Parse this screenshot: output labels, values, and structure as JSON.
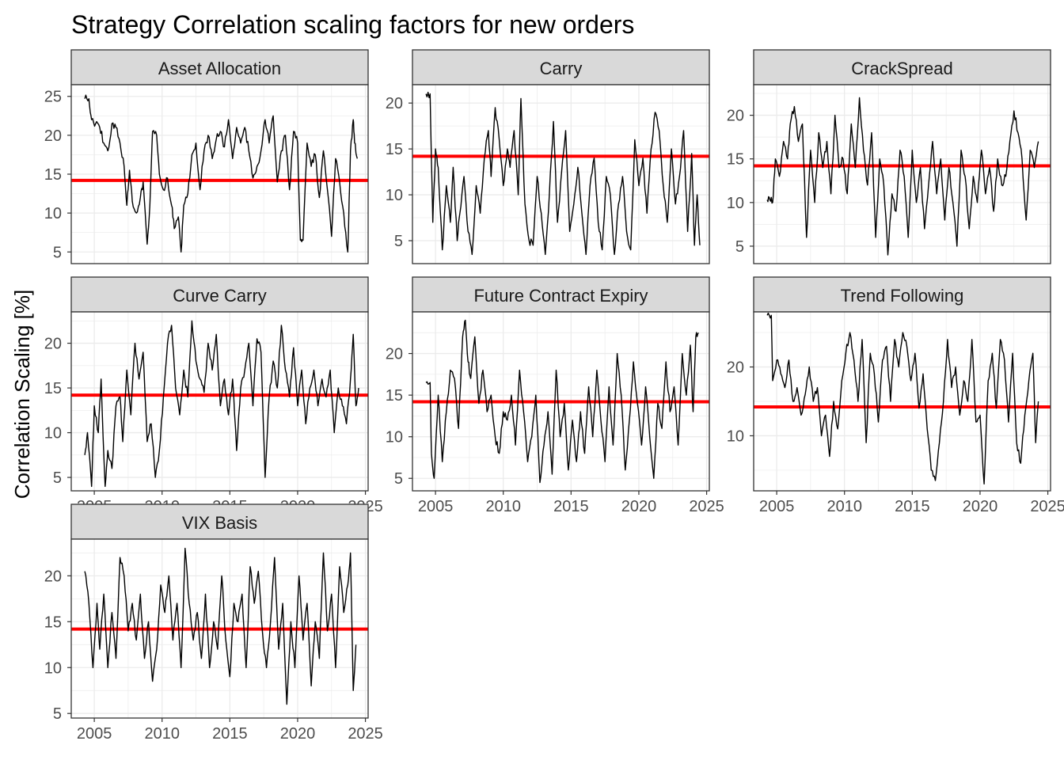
{
  "chart_data": {
    "type": "line",
    "title": "Strategy Correlation scaling factors for new orders",
    "xlabel": "",
    "ylabel": "Correlation Scaling [%]",
    "x_range": [
      2003.3,
      2025.2
    ],
    "x_ticks": [
      "2005",
      "2010",
      "2015",
      "2020",
      "2025"
    ],
    "grid": true,
    "legend": "none",
    "series_color": "#000000",
    "reference_color": "#ff0000",
    "panels": [
      {
        "name": "Asset Allocation",
        "ylim": [
          3.5,
          26.5
        ],
        "y_ticks": [
          "5",
          "10",
          "15",
          "20",
          "25"
        ],
        "reference": 14.2,
        "x": [
          2004.3,
          2004.6,
          2004.8,
          2005.1,
          2005.4,
          2005.7,
          2006.0,
          2006.3,
          2006.6,
          2006.9,
          2007.2,
          2007.4,
          2007.6,
          2007.8,
          2008.1,
          2008.4,
          2008.6,
          2008.9,
          2009.1,
          2009.3,
          2009.6,
          2009.8,
          2010.1,
          2010.4,
          2010.7,
          2010.9,
          2011.2,
          2011.4,
          2011.6,
          2011.9,
          2012.2,
          2012.5,
          2012.8,
          2013.1,
          2013.4,
          2013.7,
          2014.0,
          2014.3,
          2014.6,
          2014.9,
          2015.2,
          2015.5,
          2015.8,
          2016.1,
          2016.4,
          2016.7,
          2017.0,
          2017.3,
          2017.6,
          2017.9,
          2018.2,
          2018.5,
          2018.8,
          2019.1,
          2019.4,
          2019.7,
          2020.0,
          2020.2,
          2020.4,
          2020.7,
          2021.0,
          2021.3,
          2021.6,
          2021.9,
          2022.2,
          2022.5,
          2022.8,
          2023.1,
          2023.4,
          2023.7,
          2023.9,
          2024.1,
          2024.2,
          2024.4
        ],
        "y": [
          24.7,
          24.7,
          22.0,
          21.5,
          21.0,
          19.0,
          18.0,
          21.5,
          21.0,
          19.0,
          16.0,
          11.0,
          15.5,
          11.5,
          10.0,
          12.0,
          14.0,
          6.0,
          11.0,
          20.5,
          20.0,
          15.0,
          13.0,
          14.5,
          11.0,
          8.0,
          9.5,
          5.0,
          11.0,
          12.5,
          17.5,
          19.0,
          13.0,
          18.0,
          20.0,
          17.0,
          19.5,
          20.5,
          18.5,
          22.0,
          17.0,
          21.0,
          19.0,
          21.0,
          18.0,
          14.5,
          16.0,
          18.0,
          22.0,
          19.0,
          22.5,
          14.0,
          18.0,
          20.0,
          13.0,
          20.5,
          19.0,
          6.5,
          6.5,
          19.0,
          16.0,
          17.5,
          12.0,
          18.0,
          13.0,
          7.0,
          17.0,
          14.0,
          10.0,
          5.0,
          18.0,
          22.0,
          19.0,
          17.0
        ]
      },
      {
        "name": "Carry",
        "ylim": [
          2.5,
          22.0
        ],
        "y_ticks": [
          "5",
          "10",
          "15",
          "20"
        ],
        "reference": 14.2,
        "x": [
          2004.3,
          2004.6,
          2004.8,
          2005.0,
          2005.2,
          2005.5,
          2005.8,
          2006.1,
          2006.3,
          2006.6,
          2006.8,
          2007.1,
          2007.4,
          2007.7,
          2008.0,
          2008.3,
          2008.6,
          2008.9,
          2009.1,
          2009.4,
          2009.7,
          2010.0,
          2010.3,
          2010.5,
          2010.8,
          2011.1,
          2011.3,
          2011.6,
          2011.9,
          2012.2,
          2012.5,
          2012.8,
          2013.1,
          2013.4,
          2013.7,
          2014.0,
          2014.3,
          2014.6,
          2014.9,
          2015.2,
          2015.5,
          2015.8,
          2016.1,
          2016.4,
          2016.7,
          2017.0,
          2017.3,
          2017.6,
          2017.9,
          2018.2,
          2018.5,
          2018.8,
          2019.1,
          2019.4,
          2019.7,
          2020.0,
          2020.3,
          2020.6,
          2020.9,
          2021.2,
          2021.5,
          2021.8,
          2022.1,
          2022.4,
          2022.7,
          2023.0,
          2023.3,
          2023.6,
          2023.9,
          2024.1,
          2024.3,
          2024.5
        ],
        "y": [
          21.0,
          21.0,
          7.0,
          15.0,
          13.0,
          4.0,
          11.0,
          7.0,
          13.0,
          5.0,
          8.0,
          12.0,
          6.0,
          3.5,
          11.0,
          8.0,
          14.0,
          17.0,
          12.0,
          19.5,
          16.0,
          11.0,
          15.0,
          13.0,
          17.0,
          10.0,
          20.5,
          9.0,
          5.0,
          4.5,
          12.0,
          8.0,
          3.5,
          10.0,
          18.0,
          7.0,
          12.5,
          17.0,
          6.0,
          9.0,
          13.0,
          8.0,
          3.5,
          11.0,
          14.0,
          7.0,
          4.0,
          12.0,
          10.0,
          3.5,
          9.0,
          12.0,
          6.0,
          4.0,
          16.0,
          11.0,
          14.0,
          8.0,
          15.0,
          19.0,
          17.0,
          11.0,
          7.0,
          15.0,
          9.0,
          12.0,
          17.0,
          6.0,
          14.5,
          4.5,
          10.0,
          4.5
        ]
      },
      {
        "name": "CrackSpread",
        "ylim": [
          3.0,
          23.5
        ],
        "y_ticks": [
          "5",
          "10",
          "15",
          "20"
        ],
        "reference": 14.2,
        "x": [
          2004.3,
          2004.5,
          2004.7,
          2004.9,
          2005.2,
          2005.5,
          2005.8,
          2006.0,
          2006.3,
          2006.6,
          2006.9,
          2007.2,
          2007.5,
          2007.8,
          2008.1,
          2008.4,
          2008.7,
          2009.0,
          2009.3,
          2009.6,
          2009.9,
          2010.2,
          2010.5,
          2010.8,
          2011.1,
          2011.4,
          2011.7,
          2012.0,
          2012.3,
          2012.6,
          2012.9,
          2013.2,
          2013.5,
          2013.8,
          2014.1,
          2014.4,
          2014.7,
          2015.0,
          2015.3,
          2015.6,
          2015.9,
          2016.2,
          2016.5,
          2016.8,
          2017.1,
          2017.4,
          2017.7,
          2018.0,
          2018.3,
          2018.6,
          2018.9,
          2019.2,
          2019.5,
          2019.8,
          2020.1,
          2020.4,
          2020.7,
          2021.0,
          2021.3,
          2021.6,
          2021.9,
          2022.2,
          2022.5,
          2022.8,
          2023.1,
          2023.4,
          2023.7,
          2024.0,
          2024.3
        ],
        "y": [
          10.3,
          10.3,
          10.0,
          15.0,
          13.0,
          17.0,
          15.0,
          19.0,
          21.0,
          17.0,
          19.0,
          6.0,
          16.0,
          10.0,
          18.0,
          14.0,
          17.0,
          11.0,
          20.0,
          14.0,
          15.0,
          11.0,
          19.0,
          14.0,
          22.0,
          16.0,
          12.0,
          18.0,
          6.0,
          15.0,
          12.0,
          4.0,
          11.0,
          9.0,
          16.0,
          13.0,
          6.0,
          16.0,
          10.0,
          14.0,
          7.0,
          12.0,
          17.0,
          11.0,
          15.0,
          8.0,
          14.0,
          10.0,
          5.0,
          16.0,
          13.0,
          7.0,
          13.0,
          10.0,
          16.0,
          11.0,
          14.0,
          9.0,
          15.0,
          12.0,
          13.0,
          17.0,
          20.5,
          18.0,
          15.0,
          8.0,
          16.0,
          14.0,
          17.0
        ]
      },
      {
        "name": "Curve Carry",
        "ylim": [
          3.5,
          23.5
        ],
        "y_ticks": [
          "5",
          "10",
          "15",
          "20"
        ],
        "reference": 14.2,
        "x": [
          2004.3,
          2004.5,
          2004.8,
          2005.0,
          2005.3,
          2005.5,
          2005.8,
          2006.0,
          2006.3,
          2006.6,
          2006.9,
          2007.1,
          2007.4,
          2007.7,
          2008.0,
          2008.3,
          2008.6,
          2008.9,
          2009.2,
          2009.5,
          2009.8,
          2010.1,
          2010.4,
          2010.7,
          2011.0,
          2011.3,
          2011.6,
          2011.9,
          2012.2,
          2012.5,
          2012.8,
          2013.1,
          2013.4,
          2013.7,
          2014.0,
          2014.3,
          2014.6,
          2014.9,
          2015.2,
          2015.5,
          2015.8,
          2016.1,
          2016.4,
          2016.7,
          2017.0,
          2017.3,
          2017.6,
          2017.9,
          2018.2,
          2018.5,
          2018.8,
          2019.1,
          2019.4,
          2019.7,
          2020.0,
          2020.3,
          2020.6,
          2020.9,
          2021.2,
          2021.5,
          2021.8,
          2022.1,
          2022.4,
          2022.7,
          2023.0,
          2023.3,
          2023.6,
          2023.9,
          2024.1,
          2024.3,
          2024.5
        ],
        "y": [
          7.5,
          10.0,
          4.0,
          13.0,
          10.0,
          16.0,
          4.0,
          8.0,
          6.0,
          13.0,
          14.0,
          9.0,
          17.0,
          12.0,
          20.0,
          16.0,
          19.0,
          9.0,
          11.0,
          5.0,
          8.0,
          14.0,
          20.0,
          22.0,
          15.0,
          12.0,
          17.0,
          14.0,
          22.5,
          18.0,
          16.0,
          14.5,
          20.0,
          17.0,
          21.0,
          13.0,
          16.0,
          12.0,
          16.0,
          8.0,
          15.0,
          17.0,
          20.0,
          13.0,
          20.5,
          19.0,
          5.0,
          14.0,
          18.0,
          15.0,
          22.0,
          17.0,
          14.0,
          19.5,
          13.0,
          17.0,
          11.0,
          15.0,
          17.0,
          13.0,
          16.0,
          14.0,
          17.0,
          10.0,
          15.0,
          13.0,
          11.0,
          16.0,
          21.0,
          13.0,
          15.0
        ]
      },
      {
        "name": "Future Contract Expiry",
        "ylim": [
          3.5,
          25.0
        ],
        "y_ticks": [
          "5",
          "10",
          "15",
          "20"
        ],
        "reference": 14.2,
        "x": [
          2004.3,
          2004.6,
          2004.7,
          2004.9,
          2005.2,
          2005.5,
          2005.8,
          2006.1,
          2006.4,
          2006.7,
          2007.0,
          2007.2,
          2007.4,
          2007.6,
          2007.9,
          2008.2,
          2008.5,
          2008.8,
          2009.1,
          2009.4,
          2009.7,
          2010.0,
          2010.3,
          2010.6,
          2010.9,
          2011.2,
          2011.5,
          2011.8,
          2012.1,
          2012.4,
          2012.7,
          2013.0,
          2013.3,
          2013.6,
          2013.9,
          2014.2,
          2014.5,
          2014.8,
          2015.1,
          2015.4,
          2015.7,
          2016.0,
          2016.3,
          2016.6,
          2016.9,
          2017.2,
          2017.5,
          2017.8,
          2018.1,
          2018.4,
          2018.7,
          2019.0,
          2019.3,
          2019.6,
          2019.9,
          2020.2,
          2020.5,
          2020.8,
          2021.1,
          2021.4,
          2021.7,
          2022.0,
          2022.3,
          2022.6,
          2022.9,
          2023.2,
          2023.5,
          2023.8,
          2024.0,
          2024.2,
          2024.4
        ],
        "y": [
          16.5,
          16.5,
          8.0,
          5.0,
          15.0,
          7.0,
          13.0,
          18.0,
          17.0,
          11.0,
          22.0,
          24.0,
          19.0,
          17.0,
          22.0,
          14.0,
          18.0,
          13.0,
          15.0,
          10.0,
          8.0,
          13.0,
          12.0,
          15.0,
          9.0,
          18.0,
          13.0,
          7.0,
          10.0,
          15.0,
          4.5,
          9.0,
          13.0,
          5.5,
          18.0,
          10.0,
          14.0,
          6.0,
          12.0,
          7.0,
          13.0,
          8.0,
          16.0,
          10.0,
          18.0,
          12.0,
          7.0,
          16.0,
          9.0,
          20.0,
          15.0,
          6.0,
          12.0,
          19.0,
          14.0,
          9.0,
          16.0,
          10.0,
          5.0,
          14.0,
          11.0,
          19.0,
          13.0,
          16.0,
          9.0,
          20.0,
          15.0,
          21.0,
          13.0,
          22.0,
          22.5
        ]
      },
      {
        "name": "Trend Following",
        "ylim": [
          2.0,
          28.0
        ],
        "y_ticks": [
          "10",
          "20"
        ],
        "reference": 14.2,
        "x": [
          2004.3,
          2004.6,
          2004.7,
          2005.0,
          2005.3,
          2005.6,
          2005.9,
          2006.2,
          2006.5,
          2006.8,
          2007.1,
          2007.4,
          2007.7,
          2008.0,
          2008.3,
          2008.6,
          2008.9,
          2009.2,
          2009.5,
          2009.8,
          2010.1,
          2010.4,
          2010.7,
          2011.0,
          2011.3,
          2011.6,
          2011.9,
          2012.2,
          2012.5,
          2012.8,
          2013.1,
          2013.4,
          2013.7,
          2014.0,
          2014.3,
          2014.6,
          2014.9,
          2015.2,
          2015.5,
          2015.8,
          2016.1,
          2016.4,
          2016.7,
          2017.0,
          2017.3,
          2017.6,
          2017.9,
          2018.2,
          2018.5,
          2018.8,
          2019.1,
          2019.4,
          2019.7,
          2020.0,
          2020.3,
          2020.6,
          2020.9,
          2021.2,
          2021.5,
          2021.8,
          2022.1,
          2022.4,
          2022.7,
          2023.0,
          2023.3,
          2023.6,
          2023.9,
          2024.1,
          2024.3
        ],
        "y": [
          27.5,
          27.5,
          18.0,
          21.0,
          19.0,
          17.0,
          21.0,
          15.0,
          17.0,
          13.0,
          16.0,
          20.0,
          15.0,
          17.0,
          10.0,
          13.0,
          7.0,
          15.0,
          11.0,
          18.0,
          22.0,
          25.0,
          21.0,
          15.0,
          24.0,
          9.0,
          22.0,
          19.0,
          12.0,
          21.0,
          23.0,
          15.0,
          24.0,
          20.0,
          25.0,
          23.0,
          18.0,
          22.0,
          14.0,
          19.0,
          11.0,
          5.0,
          3.5,
          9.0,
          15.0,
          24.0,
          17.0,
          20.0,
          13.0,
          18.0,
          15.0,
          24.0,
          12.0,
          13.0,
          3.0,
          18.0,
          22.0,
          14.0,
          24.0,
          21.0,
          12.0,
          22.0,
          9.0,
          6.0,
          13.0,
          18.0,
          22.0,
          9.0,
          15.0
        ]
      },
      {
        "name": "VIX Basis",
        "ylim": [
          4.5,
          24.0
        ],
        "y_ticks": [
          "5",
          "10",
          "15",
          "20"
        ],
        "reference": 14.2,
        "x": [
          2004.3,
          2004.6,
          2004.9,
          2005.2,
          2005.4,
          2005.7,
          2006.0,
          2006.3,
          2006.6,
          2006.9,
          2007.2,
          2007.5,
          2007.8,
          2008.1,
          2008.4,
          2008.7,
          2009.0,
          2009.3,
          2009.6,
          2009.9,
          2010.2,
          2010.5,
          2010.8,
          2011.1,
          2011.4,
          2011.7,
          2012.0,
          2012.3,
          2012.6,
          2012.9,
          2013.2,
          2013.5,
          2013.8,
          2014.1,
          2014.4,
          2014.7,
          2015.0,
          2015.3,
          2015.6,
          2015.9,
          2016.2,
          2016.5,
          2016.8,
          2017.1,
          2017.4,
          2017.7,
          2018.0,
          2018.3,
          2018.6,
          2018.9,
          2019.2,
          2019.5,
          2019.8,
          2020.1,
          2020.4,
          2020.7,
          2021.0,
          2021.3,
          2021.6,
          2021.9,
          2022.2,
          2022.5,
          2022.8,
          2023.1,
          2023.4,
          2023.7,
          2023.9,
          2024.1,
          2024.3
        ],
        "y": [
          20.5,
          17.0,
          10.0,
          17.0,
          12.0,
          18.0,
          10.0,
          16.0,
          11.0,
          22.0,
          20.0,
          14.0,
          17.0,
          13.0,
          18.0,
          11.0,
          15.0,
          8.5,
          12.0,
          19.0,
          16.0,
          20.0,
          13.0,
          17.0,
          10.0,
          23.0,
          17.0,
          13.0,
          16.0,
          11.0,
          18.0,
          10.0,
          15.0,
          12.0,
          20.0,
          13.0,
          9.0,
          17.0,
          15.0,
          18.0,
          10.0,
          21.0,
          17.0,
          20.5,
          14.0,
          10.0,
          15.0,
          22.0,
          12.0,
          17.0,
          6.0,
          15.0,
          10.0,
          20.0,
          13.0,
          17.0,
          8.0,
          15.0,
          11.0,
          22.5,
          14.0,
          18.0,
          10.0,
          21.0,
          16.0,
          19.0,
          22.5,
          7.5,
          12.5
        ]
      }
    ]
  }
}
